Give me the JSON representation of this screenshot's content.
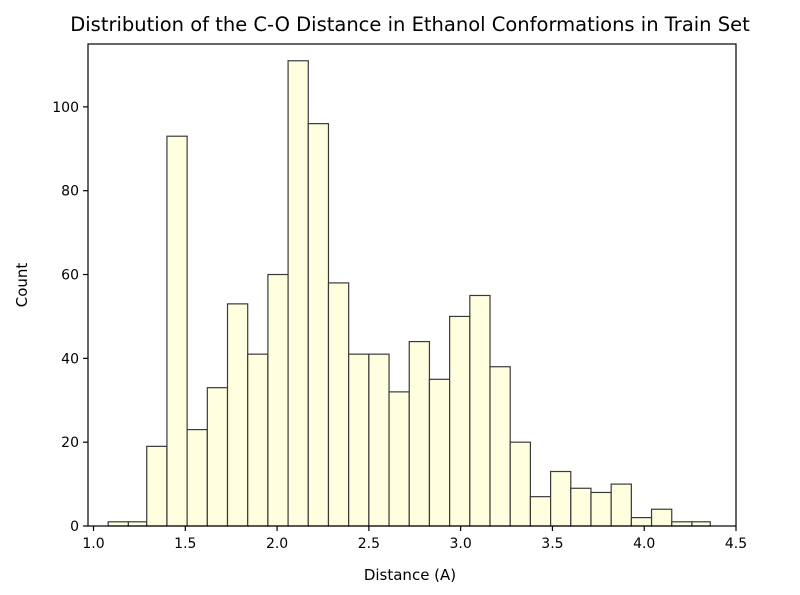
{
  "chart_data": {
    "type": "bar",
    "title": "Distribution of the C-O Distance in Ethanol Conformations in Train Set",
    "xlabel": "Distance (A)",
    "ylabel": "Count",
    "xlim": [
      0.97,
      4.5
    ],
    "ylim": [
      0,
      115
    ],
    "x_ticks": [
      {
        "value": 1.0,
        "label": "1.0"
      },
      {
        "value": 1.5,
        "label": "1.5"
      },
      {
        "value": 2.0,
        "label": "2.0"
      },
      {
        "value": 2.5,
        "label": "2.5"
      },
      {
        "value": 3.0,
        "label": "3.0"
      },
      {
        "value": 3.5,
        "label": "3.5"
      },
      {
        "value": 4.0,
        "label": "4.0"
      },
      {
        "value": 4.5,
        "label": "4.5"
      }
    ],
    "y_ticks": [
      {
        "value": 0,
        "label": "0"
      },
      {
        "value": 20,
        "label": "20"
      },
      {
        "value": 40,
        "label": "40"
      },
      {
        "value": 60,
        "label": "60"
      },
      {
        "value": 80,
        "label": "80"
      },
      {
        "value": 100,
        "label": "100"
      }
    ],
    "bin_edges": [
      1.08,
      1.19,
      1.29,
      1.4,
      1.51,
      1.62,
      1.73,
      1.84,
      1.95,
      2.06,
      2.17,
      2.28,
      2.39,
      2.5,
      2.61,
      2.72,
      2.83,
      2.94,
      3.05,
      3.16,
      3.27,
      3.38,
      3.49,
      3.6,
      3.71,
      3.82,
      3.93,
      4.04,
      4.15,
      4.26,
      4.36
    ],
    "counts": [
      1,
      1,
      19,
      93,
      23,
      33,
      53,
      41,
      60,
      111,
      96,
      58,
      41,
      41,
      32,
      44,
      35,
      50,
      55,
      38,
      20,
      7,
      13,
      9,
      8,
      10,
      2,
      4,
      1,
      1
    ],
    "bar_color": "#FFFFE0",
    "edge_color": "#3a3a3a",
    "grid": false
  }
}
